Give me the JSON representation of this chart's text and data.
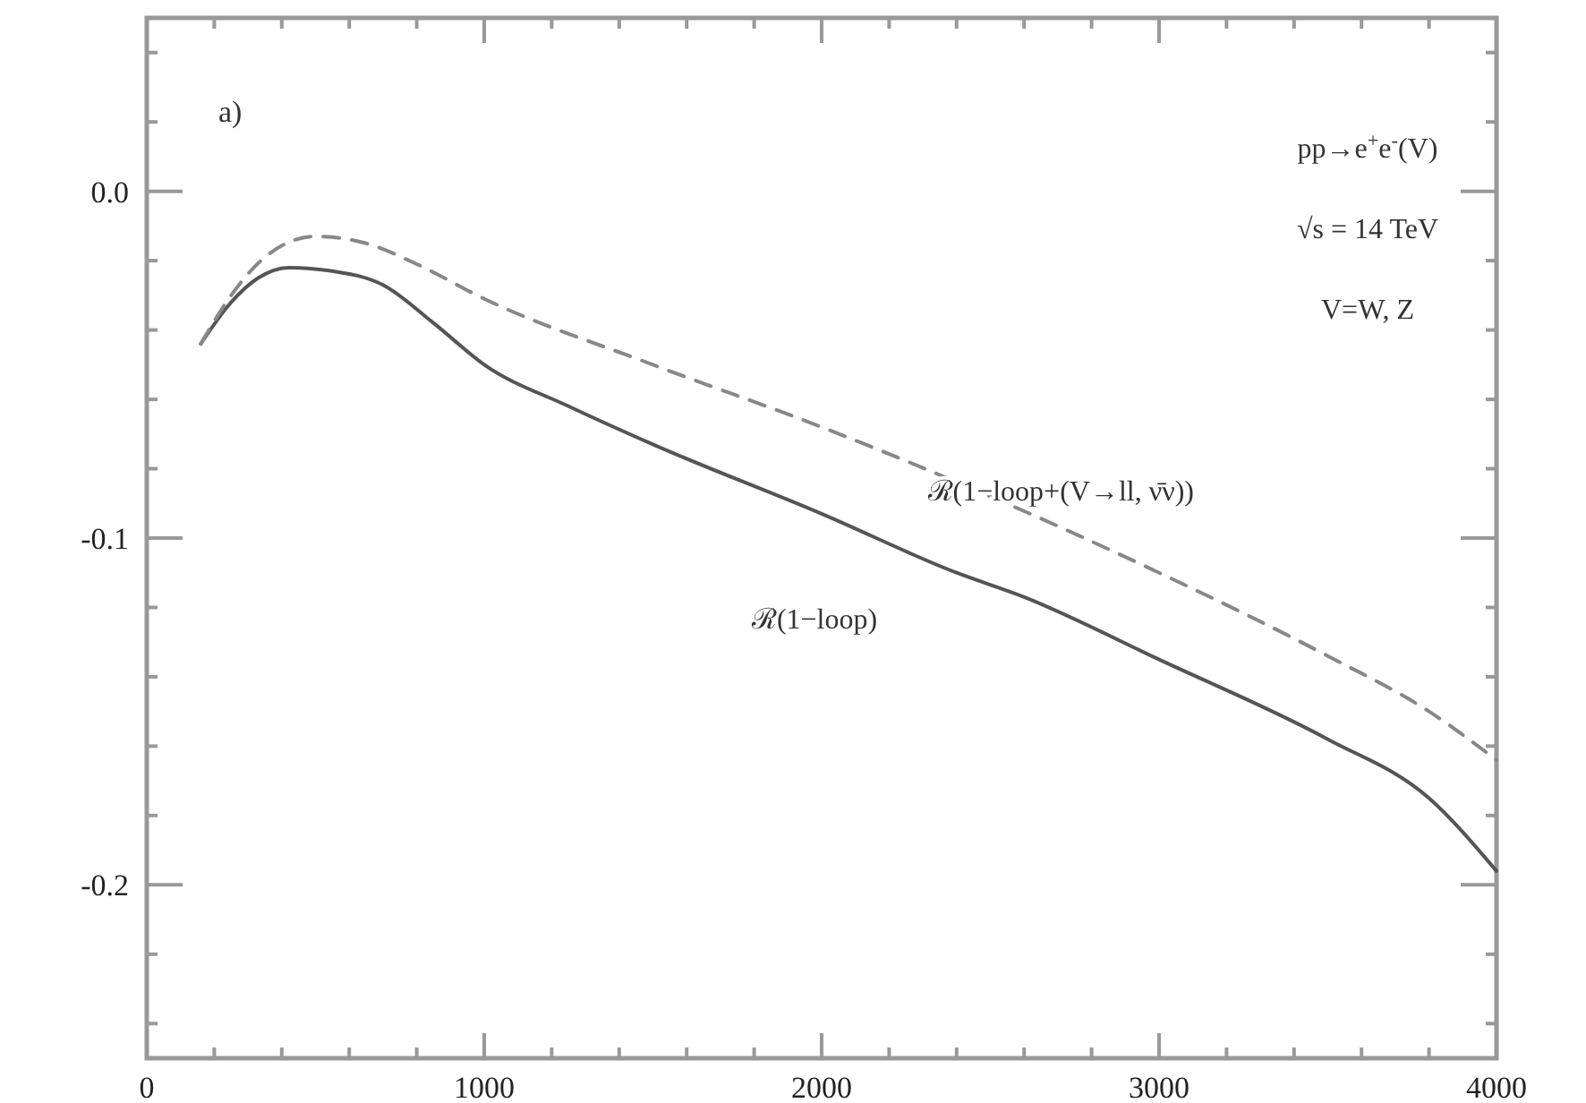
{
  "chart_data": {
    "type": "line",
    "xlim": [
      0,
      4000
    ],
    "ylim": [
      -0.25,
      0.05
    ],
    "xticks": [
      0,
      {
        "value": 200,
        "label": null
      },
      {
        "value": 400,
        "label": null
      },
      {
        "value": 600,
        "label": null
      },
      {
        "value": 800,
        "label": null
      },
      1000,
      {
        "value": 1200,
        "label": null
      },
      {
        "value": 1400,
        "label": null
      },
      {
        "value": 1600,
        "label": null
      },
      {
        "value": 1800,
        "label": null
      },
      2000,
      {
        "value": 2200,
        "label": null
      },
      {
        "value": 2400,
        "label": null
      },
      {
        "value": 2600,
        "label": null
      },
      {
        "value": 2800,
        "label": null
      },
      3000,
      {
        "value": 3200,
        "label": null
      },
      {
        "value": 3400,
        "label": null
      },
      {
        "value": 3600,
        "label": null
      },
      {
        "value": 3800,
        "label": null
      },
      4000
    ],
    "yticks": [
      {
        "value": -0.24,
        "label": null
      },
      {
        "value": -0.22,
        "label": null
      },
      -0.2,
      {
        "value": -0.18,
        "label": null
      },
      {
        "value": -0.16,
        "label": null
      },
      {
        "value": -0.14,
        "label": null
      },
      {
        "value": -0.12,
        "label": null
      },
      -0.1,
      {
        "value": -0.08,
        "label": null
      },
      {
        "value": -0.06,
        "label": null
      },
      {
        "value": -0.04,
        "label": null
      },
      {
        "value": -0.02,
        "label": null
      },
      {
        "value": 0,
        "label": "0.0"
      },
      {
        "value": 0.02,
        "label": null
      },
      {
        "value": 0.04,
        "label": null
      }
    ],
    "annotations": [
      "a)",
      "pp→e$^{+}$e$^{-}$(V)",
      "√s = 14 TeV",
      "V=W, Z"
    ],
    "series": [
      {
        "name": "ℛ(1−loop)",
        "color": "#555555",
        "line_style": "solid",
        "x": [
          160,
          250,
          330,
          420,
          550,
          700,
          850,
          1000,
          1250,
          1500,
          2000,
          2400,
          2600,
          3000,
          3500,
          3800,
          4000
        ],
        "values": [
          -0.044,
          -0.032,
          -0.025,
          -0.022,
          -0.023,
          -0.027,
          -0.038,
          -0.05,
          -0.062,
          -0.073,
          -0.093,
          -0.11,
          -0.117,
          -0.135,
          -0.158,
          -0.175,
          -0.196
        ]
      },
      {
        "name": "ℛ(1−loop+(V→ll, ν̄ν))",
        "color": "#888888",
        "line_style": "dashed",
        "x": [
          160,
          250,
          350,
          500,
          650,
          800,
          1000,
          1500,
          2000,
          2500,
          3000,
          3500,
          3800,
          4000
        ],
        "values": [
          -0.044,
          -0.03,
          -0.019,
          -0.013,
          -0.015,
          -0.021,
          -0.031,
          -0.05,
          -0.068,
          -0.088,
          -0.11,
          -0.134,
          -0.15,
          -0.164
        ]
      }
    ]
  }
}
